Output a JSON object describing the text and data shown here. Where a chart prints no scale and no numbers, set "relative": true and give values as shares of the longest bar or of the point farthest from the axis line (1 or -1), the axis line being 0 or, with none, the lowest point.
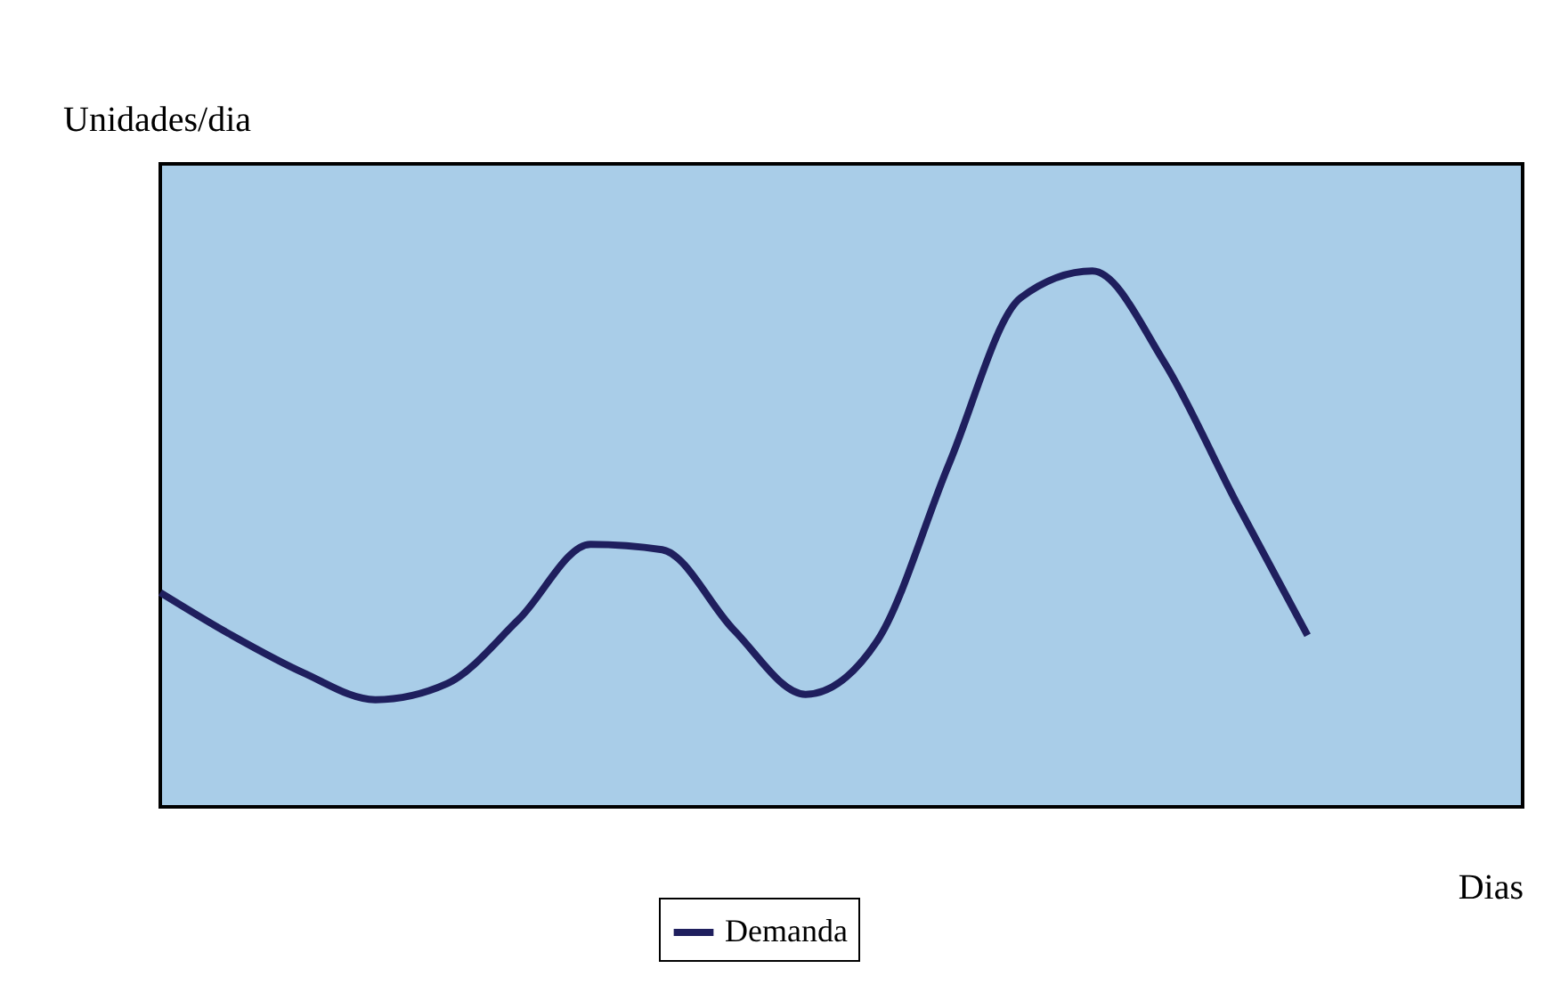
{
  "chart_data": {
    "type": "line",
    "relative": true,
    "ylabel": "Unidades/dia",
    "xlabel": "Dias",
    "categories": [
      null,
      null,
      null,
      null,
      null,
      null,
      null,
      null,
      null,
      null,
      null,
      null,
      null,
      null,
      null,
      null,
      null,
      null,
      null,
      null
    ],
    "series": [
      {
        "name": "Demanda",
        "color": "#1f1f5e",
        "values": [
          0.4,
          0.32,
          0.25,
          0.2,
          0.23,
          0.35,
          0.49,
          0.48,
          0.33,
          0.21,
          0.31,
          0.64,
          0.95,
          1.0,
          0.83,
          0.57,
          0.32,
          null,
          null,
          null
        ]
      }
    ],
    "legend": "bottom",
    "grid": false,
    "marker": "none",
    "line_style": "solid",
    "tick_labels": false
  }
}
